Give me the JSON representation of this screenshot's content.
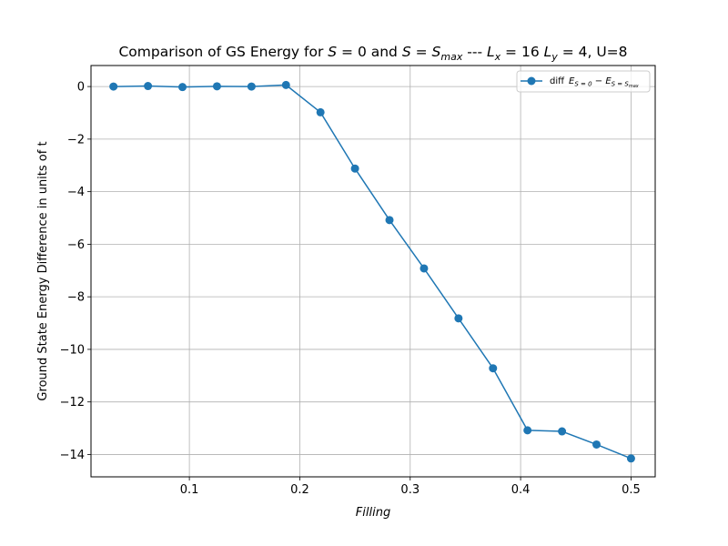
{
  "chart_data": {
    "type": "line",
    "title": {
      "prefix": "Comparison of GS Energy for ",
      "s": "S",
      "eq": " = 0 and ",
      "s2": "S",
      "eq2": " = ",
      "smax_base": "S",
      "smax_sub": "max",
      "mid": " --- ",
      "lx_base": "L",
      "lx_sub": "x",
      "lx_val": " = 16 ",
      "ly_base": "L",
      "ly_sub": "y",
      "ly_val": " = 4",
      "suffix": ", U=8"
    },
    "xlabel": "Filling",
    "ylabel": "Ground State Energy Difference in units of t",
    "xlim": [
      0.0109,
      0.5219
    ],
    "ylim": [
      -14.85,
      0.8
    ],
    "xticks": [
      0.1,
      0.2,
      0.3,
      0.4,
      0.5
    ],
    "xtick_labels": [
      "0.1",
      "0.2",
      "0.3",
      "0.4",
      "0.5"
    ],
    "yticks": [
      0,
      -2,
      -4,
      -6,
      -8,
      -10,
      -12,
      -14
    ],
    "ytick_labels": [
      "0",
      "−2",
      "−4",
      "−6",
      "−8",
      "−10",
      "−12",
      "−14"
    ],
    "grid": true,
    "legend_position": "top-right",
    "series": [
      {
        "name": {
          "prefix": "diff",
          "e1_base": "E",
          "e1_sub": "S = 0",
          "minus": " − ",
          "e2_base": "E",
          "e2_sub": "S = S",
          "e2_subsub": "max"
        },
        "color": "#1f77b4",
        "marker": "circle",
        "x": [
          0.03125,
          0.0625,
          0.09375,
          0.125,
          0.15625,
          0.1875,
          0.21875,
          0.25,
          0.28125,
          0.3125,
          0.34375,
          0.375,
          0.40625,
          0.4375,
          0.46875,
          0.5
        ],
        "y": [
          0.0,
          0.02,
          -0.02,
          0.01,
          0.0,
          0.06,
          -0.98,
          -3.12,
          -5.08,
          -6.92,
          -8.82,
          -10.72,
          -13.08,
          -13.12,
          -13.62,
          -14.15
        ]
      }
    ]
  }
}
